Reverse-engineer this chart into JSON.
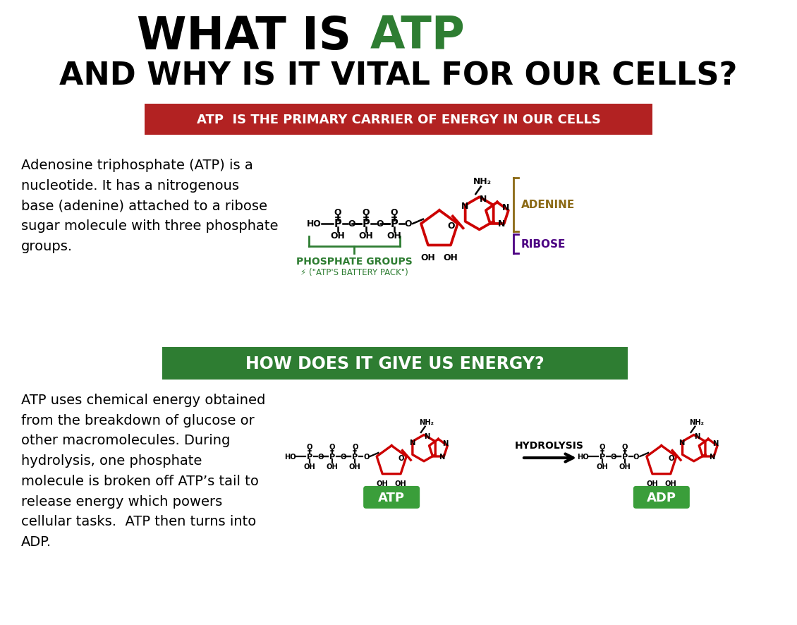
{
  "bg_color": "#ffffff",
  "title_line1_black": "WHAT IS ",
  "title_line1_green": "ATP",
  "title_line2": "AND WHY IS IT VITAL FOR OUR CELLS?",
  "red_banner_text": "ATP  IS THE PRIMARY CARRIER OF ENERGY IN OUR CELLS",
  "red_banner_color": "#b22222",
  "red_banner_text_color": "#ffffff",
  "green_banner_text": "HOW DOES IT GIVE US ENERGY?",
  "green_banner_color": "#2e7d32",
  "green_banner_text_color": "#ffffff",
  "body_text1": "Adenosine triphosphate (ATP) is a\nnucleotide. It has a nitrogenous\nbase (adenine) attached to a ribose\nsugar molecule with three phosphate\ngroups.",
  "body_text2": "ATP uses chemical energy obtained\nfrom the breakdown of glucose or\nother macromolecules. During\nhydrolysis, one phosphate\nmolecule is broken off ATP’s tail to\nrelease energy which powers\ncellular tasks.  ATP then turns into\nADP.",
  "phosphate_label": "PHOSPHATE GROUPS",
  "phosphate_sublabel": "⚡ (\"ATP'S BATTERY PACK\")",
  "phosphate_label_color": "#2e7d32",
  "adenine_label": "ADENINE",
  "adenine_label_color": "#8b6914",
  "ribose_label": "RIBOSE",
  "ribose_label_color": "#4b0082",
  "hydrolysis_label": "HYDROLYSIS",
  "atp_label": "ATP",
  "adp_label": "ADP",
  "label_badge_color": "#3a9e3a",
  "mol_color_red": "#cc0000",
  "mol_color_black": "#000000"
}
